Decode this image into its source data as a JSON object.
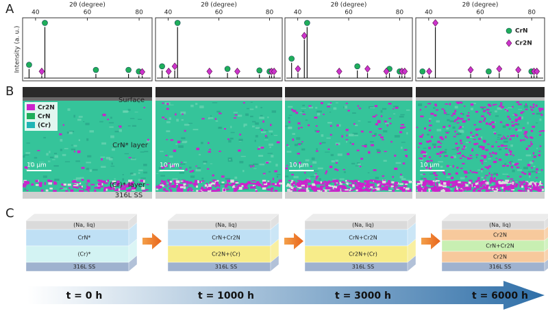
{
  "panel_labels": [
    "A",
    "B",
    "C"
  ],
  "chart_data": [
    {
      "type": "scatter",
      "x_label": "2θ (degree)",
      "y_label": "Intensity (a. u.)",
      "xlim": [
        35,
        85
      ],
      "xticks": [
        40,
        60,
        80
      ],
      "ylim": [
        0,
        1.1
      ],
      "series": [
        {
          "name": "CrN",
          "color": "#1fae5a",
          "marker": "circle",
          "x": [
            37.5,
            43.6,
            63.3,
            75.9,
            79.9
          ],
          "values": [
            0.18,
            1.0,
            0.08,
            0.08,
            0.05
          ]
        },
        {
          "name": "Cr2N",
          "color": "#cc33cc",
          "marker": "diamond",
          "x": [
            42.4,
            81.2
          ],
          "values": [
            0.05,
            0.04
          ]
        }
      ]
    },
    {
      "type": "scatter",
      "x_label": "2θ (degree)",
      "xlim": [
        35,
        85
      ],
      "xticks": [
        40,
        60,
        80
      ],
      "ylim": [
        0,
        1.1
      ],
      "series": [
        {
          "name": "CrN",
          "color": "#1fae5a",
          "marker": "circle",
          "x": [
            37.6,
            43.7,
            63.4,
            76.0,
            80.0
          ],
          "values": [
            0.15,
            1.0,
            0.1,
            0.07,
            0.05
          ]
        },
        {
          "name": "Cr2N",
          "color": "#cc33cc",
          "marker": "diamond",
          "x": [
            40.2,
            42.6,
            56.3,
            67.3,
            80.8,
            81.8
          ],
          "values": [
            0.05,
            0.15,
            0.05,
            0.05,
            0.05,
            0.05
          ]
        }
      ]
    },
    {
      "type": "scatter",
      "x_label": "2θ (degree)",
      "xlim": [
        35,
        85
      ],
      "xticks": [
        40,
        60,
        80
      ],
      "ylim": [
        0,
        1.1
      ],
      "series": [
        {
          "name": "CrN",
          "color": "#1fae5a",
          "marker": "circle",
          "x": [
            37.6,
            43.7,
            63.4,
            76.0,
            80.0
          ],
          "values": [
            0.3,
            1.0,
            0.15,
            0.1,
            0.05
          ]
        },
        {
          "name": "Cr2N",
          "color": "#cc33cc",
          "marker": "diamond",
          "x": [
            40.1,
            42.6,
            56.3,
            67.4,
            74.8,
            80.9,
            82.0
          ],
          "values": [
            0.1,
            0.75,
            0.05,
            0.1,
            0.05,
            0.05,
            0.05
          ]
        }
      ]
    },
    {
      "type": "scatter",
      "x_label": "2θ (degree)",
      "xlim": [
        35,
        85
      ],
      "xticks": [
        40,
        60,
        80
      ],
      "ylim": [
        0,
        1.1
      ],
      "legend": "upper right",
      "series": [
        {
          "name": "CrN",
          "color": "#1fae5a",
          "marker": "circle",
          "x": [
            37.6,
            63.3,
            79.9
          ],
          "values": [
            0.05,
            0.05,
            0.05
          ]
        },
        {
          "name": "Cr2N",
          "color": "#cc33cc",
          "marker": "diamond",
          "x": [
            40.2,
            42.6,
            56.3,
            67.4,
            74.8,
            80.9,
            82.0
          ],
          "values": [
            0.05,
            1.0,
            0.08,
            0.1,
            0.08,
            0.05,
            0.05
          ]
        }
      ]
    }
  ],
  "micrographs": {
    "legend": [
      {
        "name": "Cr2N",
        "color": "#cc22cc"
      },
      {
        "name": "CrN",
        "color": "#1fae5a"
      },
      {
        "name": "(Cr)",
        "color": "#1fb5b5"
      }
    ],
    "labels": {
      "surface": "Surface",
      "crn_layer": "CrN* layer",
      "cr_layer": "(Cr)* layer",
      "substrate": "316L SS"
    },
    "scale_bars": [
      "10 μm",
      "10 μm",
      "10 μm",
      "10 μm"
    ]
  },
  "schematic": {
    "blocks": [
      {
        "layers": [
          {
            "label": "(Na, liq)",
            "color": "#dadada"
          },
          {
            "label": "CrN*",
            "color": "#bfe0f5"
          },
          {
            "label": "(Cr)*",
            "color": "#d3f3f3"
          },
          {
            "label": "316L SS",
            "color": "#9fb2cf"
          }
        ]
      },
      {
        "layers": [
          {
            "label": "(Na, liq)",
            "color": "#dadada"
          },
          {
            "label": "CrN+Cr2N",
            "color": "#bfe0f5"
          },
          {
            "label": "Cr2N+(Cr)",
            "color": "#f7ec8a"
          },
          {
            "label": "316L SS",
            "color": "#9fb2cf"
          }
        ]
      },
      {
        "layers": [
          {
            "label": "(Na, liq)",
            "color": "#dadada"
          },
          {
            "label": "CrN+Cr2N",
            "color": "#bfe0f5"
          },
          {
            "label": "Cr2N+(Cr)",
            "color": "#f7ec8a"
          },
          {
            "label": "316L SS",
            "color": "#9fb2cf"
          }
        ]
      },
      {
        "layers": [
          {
            "label": "(Na, liq)",
            "color": "#dadada"
          },
          {
            "label": "Cr2N",
            "color": "#f7c99c"
          },
          {
            "label": "CrN+Cr2N",
            "color": "#c8efb2"
          },
          {
            "label": "Cr2N",
            "color": "#f7c99c"
          },
          {
            "label": "316L SS",
            "color": "#9fb2cf"
          }
        ]
      }
    ],
    "times": [
      "t = 0 h",
      "t = 1000 h",
      "t = 3000 h",
      "t = 6000 h"
    ]
  }
}
